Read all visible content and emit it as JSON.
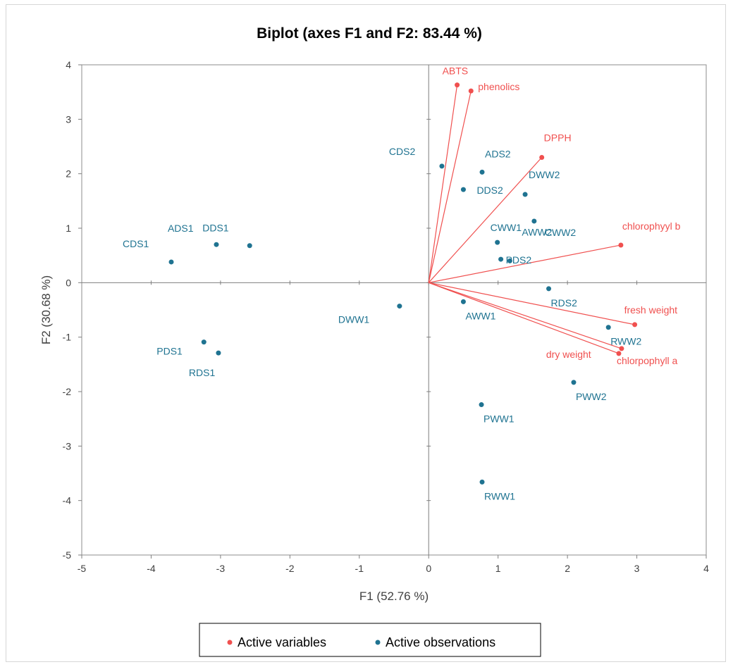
{
  "chart_data": {
    "type": "scatter",
    "title": "Biplot (axes F1 and F2: 83.44 %)",
    "xlabel": "F1 (52.76 %)",
    "ylabel": "F2 (30.68 %)",
    "xlim": [
      -5,
      4
    ],
    "ylim": [
      -5,
      4
    ],
    "x_ticks": [
      "-5",
      "-4",
      "-3",
      "-2",
      "-1",
      "0",
      "1",
      "2",
      "3",
      "4"
    ],
    "y_ticks": [
      "4",
      "3",
      "2",
      "1",
      "0",
      "-1",
      "-2",
      "-3",
      "-4",
      "-5"
    ],
    "grid": false,
    "legend_position": "bottom",
    "colors": {
      "variables": "#f0504f",
      "observations": "#1f7391"
    },
    "series": [
      {
        "name": "Active variables",
        "kind": "vectors",
        "points": [
          {
            "label": "ABTS",
            "x": 0.41,
            "y": 3.63
          },
          {
            "label": "phenolics",
            "x": 0.61,
            "y": 3.52
          },
          {
            "label": "DPPH",
            "x": 1.63,
            "y": 2.3
          },
          {
            "label": "chlorophyyl b",
            "x": 2.77,
            "y": 0.69
          },
          {
            "label": "fresh weight",
            "x": 2.97,
            "y": -0.77
          },
          {
            "label": "dry weight",
            "x": 2.78,
            "y": -1.21
          },
          {
            "label": "chlorpophyll a",
            "x": 2.74,
            "y": -1.3
          }
        ]
      },
      {
        "name": "Active observations",
        "kind": "points",
        "points": [
          {
            "label": "CDS2",
            "x": 0.19,
            "y": 2.14
          },
          {
            "label": "ADS2",
            "x": 0.77,
            "y": 2.03
          },
          {
            "label": "DDS2",
            "x": 0.5,
            "y": 1.71
          },
          {
            "label": "DWW2",
            "x": 1.39,
            "y": 1.62
          },
          {
            "label": "CWW2",
            "x": 1.52,
            "y": 1.13
          },
          {
            "label": "CWW1",
            "x": 0.99,
            "y": 0.74
          },
          {
            "label": "PDS2",
            "x": 1.04,
            "y": 0.43
          },
          {
            "label": "AWW2",
            "x": 1.17,
            "y": 0.4
          },
          {
            "label": "RDS2",
            "x": 1.73,
            "y": -0.11
          },
          {
            "label": "AWW1",
            "x": 0.5,
            "y": -0.35
          },
          {
            "label": "DWW1",
            "x": -0.42,
            "y": -0.43
          },
          {
            "label": "RWW2",
            "x": 2.59,
            "y": -0.82
          },
          {
            "label": "PWW2",
            "x": 2.09,
            "y": -1.83
          },
          {
            "label": "PWW1",
            "x": 0.76,
            "y": -2.24
          },
          {
            "label": "RWW1",
            "x": 0.77,
            "y": -3.66
          },
          {
            "label": "ADS1",
            "x": -3.06,
            "y": 0.7
          },
          {
            "label": "DDS1",
            "x": -2.58,
            "y": 0.68
          },
          {
            "label": "CDS1",
            "x": -3.71,
            "y": 0.38
          },
          {
            "label": "PDS1",
            "x": -3.24,
            "y": -1.09
          },
          {
            "label": "RDS1",
            "x": -3.03,
            "y": -1.29
          }
        ]
      }
    ]
  }
}
